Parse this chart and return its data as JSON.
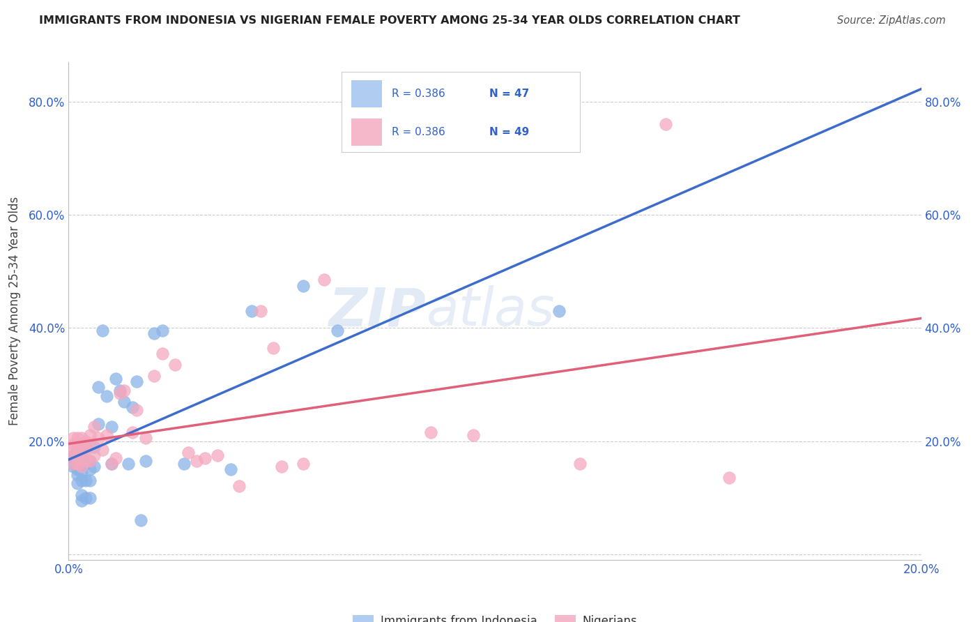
{
  "title": "IMMIGRANTS FROM INDONESIA VS NIGERIAN FEMALE POVERTY AMONG 25-34 YEAR OLDS CORRELATION CHART",
  "source": "Source: ZipAtlas.com",
  "ylabel": "Female Poverty Among 25-34 Year Olds",
  "xlim": [
    0.0,
    0.2
  ],
  "ylim": [
    -0.01,
    0.87
  ],
  "x_ticks": [
    0.0,
    0.04,
    0.08,
    0.12,
    0.16,
    0.2
  ],
  "x_tick_labels": [
    "0.0%",
    "",
    "",
    "",
    "",
    "20.0%"
  ],
  "y_ticks": [
    0.0,
    0.2,
    0.4,
    0.6,
    0.8
  ],
  "y_tick_labels": [
    "",
    "20.0%",
    "40.0%",
    "60.0%",
    "80.0%"
  ],
  "indonesia_color": "#8ab4e8",
  "nigeria_color": "#f4a8be",
  "indonesia_line_color": "#3d6dcc",
  "nigeria_line_color": "#e0607a",
  "legend_indonesia_color": "#b0ccf0",
  "legend_nigeria_color": "#f4b8ca",
  "R_indonesia": "0.386",
  "N_indonesia": "47",
  "R_nigeria": "0.386",
  "N_nigeria": "49",
  "label_indonesia": "Immigrants from Indonesia",
  "label_nigeria": "Nigerians",
  "background_color": "#ffffff",
  "grid_color": "#cccccc",
  "indonesia_x": [
    0.001,
    0.001,
    0.001,
    0.001,
    0.002,
    0.002,
    0.002,
    0.002,
    0.002,
    0.003,
    0.003,
    0.003,
    0.003,
    0.003,
    0.003,
    0.004,
    0.004,
    0.004,
    0.004,
    0.005,
    0.005,
    0.005,
    0.005,
    0.006,
    0.006,
    0.007,
    0.007,
    0.008,
    0.009,
    0.01,
    0.01,
    0.011,
    0.012,
    0.013,
    0.014,
    0.015,
    0.016,
    0.017,
    0.018,
    0.02,
    0.022,
    0.027,
    0.038,
    0.043,
    0.055,
    0.063,
    0.115
  ],
  "indonesia_y": [
    0.175,
    0.155,
    0.16,
    0.17,
    0.14,
    0.125,
    0.15,
    0.165,
    0.17,
    0.095,
    0.105,
    0.13,
    0.145,
    0.16,
    0.175,
    0.1,
    0.13,
    0.16,
    0.19,
    0.1,
    0.13,
    0.15,
    0.165,
    0.155,
    0.19,
    0.23,
    0.295,
    0.395,
    0.28,
    0.16,
    0.225,
    0.31,
    0.29,
    0.27,
    0.16,
    0.26,
    0.305,
    0.06,
    0.165,
    0.39,
    0.395,
    0.16,
    0.15,
    0.43,
    0.475,
    0.395,
    0.43
  ],
  "nigeria_x": [
    0.001,
    0.001,
    0.001,
    0.001,
    0.001,
    0.002,
    0.002,
    0.002,
    0.002,
    0.003,
    0.003,
    0.003,
    0.003,
    0.004,
    0.004,
    0.004,
    0.005,
    0.005,
    0.005,
    0.006,
    0.006,
    0.007,
    0.008,
    0.009,
    0.01,
    0.011,
    0.012,
    0.013,
    0.015,
    0.016,
    0.018,
    0.02,
    0.022,
    0.025,
    0.028,
    0.03,
    0.032,
    0.035,
    0.04,
    0.045,
    0.048,
    0.05,
    0.055,
    0.06,
    0.085,
    0.095,
    0.12,
    0.14,
    0.155
  ],
  "nigeria_y": [
    0.185,
    0.175,
    0.16,
    0.195,
    0.205,
    0.175,
    0.16,
    0.19,
    0.205,
    0.155,
    0.175,
    0.195,
    0.205,
    0.165,
    0.185,
    0.2,
    0.165,
    0.195,
    0.21,
    0.175,
    0.225,
    0.205,
    0.185,
    0.21,
    0.16,
    0.17,
    0.285,
    0.29,
    0.215,
    0.255,
    0.205,
    0.315,
    0.355,
    0.335,
    0.18,
    0.165,
    0.17,
    0.175,
    0.12,
    0.43,
    0.365,
    0.155,
    0.16,
    0.485,
    0.215,
    0.21,
    0.16,
    0.76,
    0.135
  ]
}
